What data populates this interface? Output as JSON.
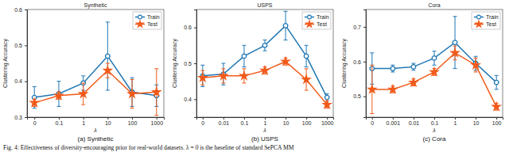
{
  "chart_data": [
    {
      "type": "line",
      "title": "Synthetic",
      "subtitle": "(a) Synthetic",
      "x_label": "λ",
      "y_label": "Clustering Accuracy",
      "categories": [
        "0",
        "0.1",
        "1",
        "10",
        "100",
        "1000"
      ],
      "ylim": [
        0.3,
        0.6
      ],
      "yticks": [
        0.3,
        0.4,
        0.5,
        0.6
      ],
      "legend": "upper right",
      "grid": false,
      "series": [
        {
          "name": "Train",
          "color": "#1f77b4",
          "marker": "circle",
          "values": [
            0.355,
            0.365,
            0.395,
            0.47,
            0.37,
            0.36
          ],
          "errors": [
            0.03,
            0.035,
            0.02,
            0.095,
            0.04,
            0.03
          ]
        },
        {
          "name": "Test",
          "color": "#f05a1a",
          "marker": "star",
          "values": [
            0.34,
            0.36,
            0.365,
            0.43,
            0.365,
            0.37
          ],
          "errors": [
            0.01,
            0.01,
            0.03,
            0.02,
            0.04,
            0.065
          ]
        }
      ]
    },
    {
      "type": "line",
      "title": "USPS",
      "subtitle": "(b) USPS",
      "x_label": "λ",
      "y_label": "Clustering Accuracy",
      "categories": [
        "0",
        "0.01",
        "0.1",
        "1",
        "10",
        "100",
        "1000"
      ],
      "ylim": [
        0.35,
        0.65
      ],
      "yticks": [
        0.4,
        0.5,
        0.6
      ],
      "legend": "upper right",
      "grid": false,
      "series": [
        {
          "name": "Train",
          "color": "#1f77b4",
          "marker": "circle",
          "values": [
            0.465,
            0.47,
            0.52,
            0.55,
            0.605,
            0.52,
            0.405
          ],
          "errors": [
            0.03,
            0.03,
            0.03,
            0.015,
            0.04,
            0.03,
            0.01
          ]
        },
        {
          "name": "Test",
          "color": "#f05a1a",
          "marker": "star",
          "values": [
            0.46,
            0.465,
            0.465,
            0.48,
            0.505,
            0.455,
            0.385
          ],
          "errors": [
            0.02,
            0.02,
            0.02,
            0.01,
            0.01,
            0.03,
            0.01
          ]
        }
      ]
    },
    {
      "type": "line",
      "title": "Cora",
      "subtitle": "(c) Cora",
      "x_label": "λ",
      "y_label": "Clustering Accuracy",
      "categories": [
        "0",
        "0.001",
        "0.01",
        "0.1",
        "1",
        "10",
        "100"
      ],
      "ylim": [
        0.44,
        0.75
      ],
      "yticks": [
        0.5,
        0.6,
        0.7
      ],
      "legend": "upper right",
      "grid": false,
      "series": [
        {
          "name": "Train",
          "color": "#1f77b4",
          "marker": "circle",
          "values": [
            0.58,
            0.58,
            0.585,
            0.61,
            0.655,
            0.595,
            0.54
          ],
          "errors": [
            0.045,
            0.01,
            0.01,
            0.02,
            0.075,
            0.02,
            0.02
          ]
        },
        {
          "name": "Test",
          "color": "#f05a1a",
          "marker": "star",
          "values": [
            0.52,
            0.52,
            0.54,
            0.57,
            0.625,
            0.59,
            0.47
          ],
          "errors": [
            0.07,
            0.01,
            0.01,
            0.01,
            0.02,
            0.02,
            0.01
          ]
        }
      ]
    }
  ],
  "caption": "Fig. 4: Effectiveness of diversity-encouraging prior for real-world datasets. λ = 0 is the baseline of standard SePCA MM"
}
